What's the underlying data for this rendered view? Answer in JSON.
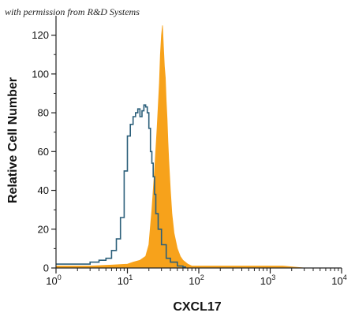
{
  "watermark": "with permission from R&D Systems",
  "chart_data": {
    "type": "area",
    "xlabel": "CXCL17",
    "ylabel": "Relative Cell Number",
    "x_scale": "log",
    "xlim": [
      1,
      10000
    ],
    "ylim": [
      0,
      130
    ],
    "x_ticks": [
      {
        "value": 1,
        "base": "10",
        "exp": "0"
      },
      {
        "value": 10,
        "base": "10",
        "exp": "1"
      },
      {
        "value": 100,
        "base": "10",
        "exp": "2"
      },
      {
        "value": 1000,
        "base": "10",
        "exp": "3"
      },
      {
        "value": 10000,
        "base": "10",
        "exp": "4"
      }
    ],
    "y_ticks": [
      0,
      20,
      40,
      60,
      80,
      100,
      120
    ],
    "series": [
      {
        "style": "filled",
        "color": "#F7A21B",
        "x": [
          1,
          3,
          6,
          10,
          12,
          15,
          18,
          20,
          22,
          24,
          26,
          28,
          29,
          30,
          31,
          32,
          33,
          34,
          35,
          36,
          37,
          38,
          40,
          42,
          45,
          50,
          55,
          60,
          70,
          80,
          100,
          150,
          300,
          1000,
          1500,
          3000
        ],
        "y": [
          1,
          1,
          1.5,
          2,
          3,
          4,
          6,
          12,
          30,
          50,
          72,
          95,
          110,
          120,
          125,
          114,
          104,
          98,
          86,
          77,
          65,
          55,
          40,
          28,
          18,
          10,
          6,
          4,
          2,
          1,
          1,
          1,
          1,
          1,
          1,
          0
        ]
      },
      {
        "style": "outline",
        "color": "#2B5F7A",
        "x": [
          1,
          2,
          3,
          4,
          5,
          6,
          7,
          8,
          9,
          10,
          11,
          12,
          13,
          14,
          15,
          16,
          17,
          18,
          19,
          20,
          21,
          22,
          23,
          24,
          25,
          27,
          30,
          35,
          40,
          50,
          60,
          65
        ],
        "y": [
          2,
          2,
          3,
          4,
          5,
          9,
          15,
          26,
          50,
          68,
          74,
          78,
          80,
          82,
          78,
          81,
          84,
          83,
          80,
          72,
          60,
          54,
          47,
          38,
          28,
          20,
          12,
          5,
          3,
          1,
          0.5,
          0
        ]
      }
    ]
  }
}
